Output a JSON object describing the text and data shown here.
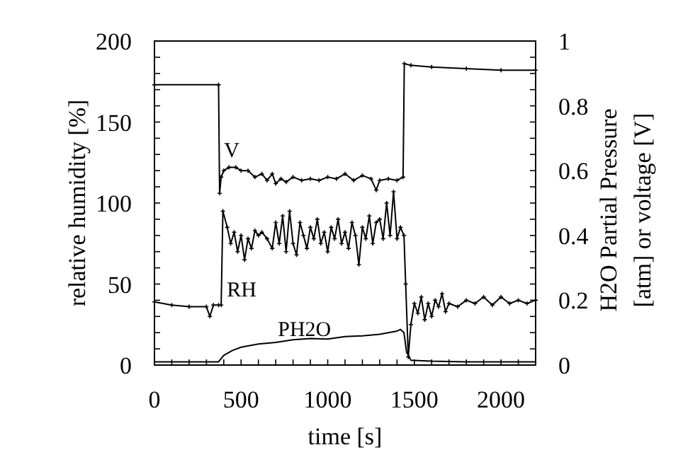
{
  "chart_data": {
    "type": "line",
    "xlabel": "time [s]",
    "ylabel": "relative humidity [%]",
    "y2label": "H2O Partial Pressure\n[atm] or voltage [V]",
    "xlim": [
      0,
      2200
    ],
    "xticks": [
      0,
      500,
      1000,
      1500,
      2000
    ],
    "ylim": [
      0,
      200
    ],
    "yticks": [
      0,
      50,
      100,
      150,
      200
    ],
    "y2lim": [
      0,
      1
    ],
    "y2ticks": [
      0,
      0.2,
      0.4,
      0.6,
      0.8,
      1
    ],
    "grid": false,
    "series": [
      {
        "name": "V",
        "axis": "y2",
        "color": "#000000",
        "marker": "cross",
        "x": [
          0,
          370,
          376,
          385,
          400,
          430,
          470,
          500,
          540,
          580,
          620,
          650,
          680,
          700,
          730,
          760,
          800,
          850,
          900,
          950,
          1000,
          1050,
          1100,
          1150,
          1200,
          1250,
          1280,
          1300,
          1350,
          1400,
          1435,
          1442,
          1480,
          1600,
          1800,
          2000,
          2200
        ],
        "values": [
          0.865,
          0.865,
          0.53,
          0.58,
          0.6,
          0.61,
          0.61,
          0.6,
          0.6,
          0.58,
          0.59,
          0.57,
          0.59,
          0.56,
          0.575,
          0.565,
          0.58,
          0.57,
          0.575,
          0.57,
          0.58,
          0.575,
          0.59,
          0.57,
          0.585,
          0.575,
          0.54,
          0.57,
          0.575,
          0.57,
          0.58,
          0.93,
          0.925,
          0.92,
          0.915,
          0.91,
          0.91
        ]
      },
      {
        "name": "RH",
        "color": "#000000",
        "marker": "cross",
        "x": [
          0,
          100,
          200,
          300,
          320,
          340,
          370,
          385,
          395,
          420,
          440,
          460,
          480,
          500,
          520,
          540,
          560,
          580,
          600,
          620,
          650,
          680,
          700,
          720,
          740,
          760,
          780,
          800,
          820,
          840,
          860,
          880,
          900,
          920,
          940,
          960,
          980,
          1000,
          1020,
          1040,
          1060,
          1080,
          1100,
          1120,
          1140,
          1160,
          1180,
          1200,
          1220,
          1240,
          1260,
          1280,
          1300,
          1320,
          1340,
          1360,
          1380,
          1400,
          1420,
          1440,
          1450,
          1465,
          1480,
          1500,
          1520,
          1540,
          1560,
          1580,
          1600,
          1620,
          1640,
          1660,
          1680,
          1700,
          1750,
          1800,
          1850,
          1900,
          1950,
          2000,
          2050,
          2100,
          2150,
          2200
        ],
        "values": [
          39,
          37,
          36,
          36,
          30,
          37,
          37,
          37,
          95,
          85,
          75,
          82,
          70,
          80,
          65,
          78,
          72,
          83,
          80,
          82,
          78,
          72,
          88,
          75,
          92,
          70,
          95,
          75,
          68,
          88,
          80,
          72,
          85,
          78,
          90,
          75,
          82,
          70,
          85,
          78,
          90,
          75,
          82,
          72,
          88,
          80,
          62,
          85,
          78,
          92,
          75,
          88,
          90,
          78,
          100,
          80,
          107,
          78,
          85,
          80,
          50,
          5,
          25,
          38,
          32,
          42,
          28,
          38,
          30,
          40,
          36,
          44,
          33,
          38,
          36,
          40,
          38,
          42,
          37,
          42,
          38,
          40,
          38,
          40
        ]
      },
      {
        "name": "PH2O",
        "axis": "y2",
        "color": "#000000",
        "marker": "none",
        "x": [
          0,
          370,
          400,
          450,
          500,
          600,
          700,
          800,
          900,
          1000,
          1100,
          1200,
          1300,
          1400,
          1420,
          1440,
          1455,
          1480,
          1600,
          1800,
          2000,
          2200
        ],
        "values": [
          0.01,
          0.01,
          0.03,
          0.045,
          0.055,
          0.065,
          0.07,
          0.078,
          0.082,
          0.08,
          0.088,
          0.09,
          0.095,
          0.105,
          0.11,
          0.1,
          0.04,
          0.015,
          0.012,
          0.01,
          0.01,
          0.01
        ]
      }
    ]
  }
}
